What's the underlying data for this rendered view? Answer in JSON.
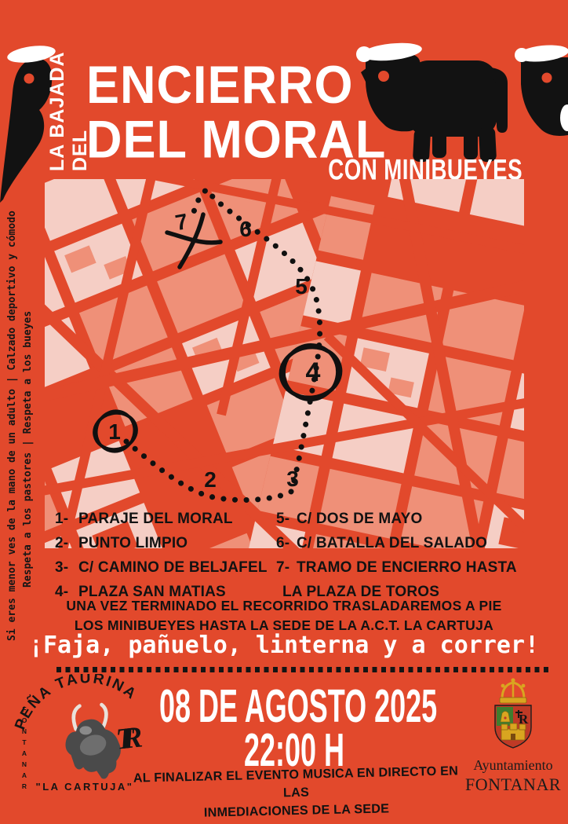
{
  "poster": {
    "header": {
      "kicker": "LA BAJADA DEL",
      "title_line1": "ENCIERRO",
      "title_line2": "DEL MORAL",
      "subtitle": "CON MINIBUEYES"
    },
    "side_notes": {
      "line1": "Si eres menor ves de la mano de un adulto | Calzado deportivo y cómodo",
      "line2": "Respeta a los pastores | Respeta a los bueyes"
    },
    "map": {
      "points": [
        "1",
        "2",
        "3",
        "4",
        "5",
        "6",
        "7"
      ]
    },
    "legend": {
      "left": [
        {
          "num": "1-",
          "label": "PARAJE DEL MORAL"
        },
        {
          "num": "2-",
          "label": "PUNTO LIMPIO"
        },
        {
          "num": "3-",
          "label": "C/ CAMINO DE BELJAFEL"
        },
        {
          "num": "4-",
          "label": "PLAZA SAN MATIAS"
        }
      ],
      "right": [
        {
          "num": "5-",
          "label": "C/ DOS DE MAYO"
        },
        {
          "num": "6-",
          "label": "C/ BATALLA DEL SALADO"
        },
        {
          "num": "7-",
          "label": "TRAMO DE ENCIERRO HASTA"
        },
        {
          "num": "",
          "label": "LA PLAZA DE TOROS"
        }
      ]
    },
    "notes": {
      "line1": "UNA VEZ TERMINADO EL RECORRIDO TRASLADAREMOS A PIE",
      "line2": "LOS MINIBUEYES HASTA LA SEDE DE LA A.C.T. LA CARTUJA"
    },
    "slogan": "¡Faja, pañuelo, linterna y a correr!",
    "event": {
      "date": "08 DE AGOSTO 2025",
      "time": "22:00 H",
      "footer_line1": "AL FINALIZAR EL EVENTO MUSICA EN DIRECTO EN LAS",
      "footer_line2": "INMEDIACIONES DE LA SEDE"
    },
    "pena": {
      "arc": "PEÑA TAURINA",
      "vertical": "FONTANAR",
      "monogram_t": "T",
      "monogram_r": "R",
      "caption": "\"LA CARTUJA\""
    },
    "ayuntamiento": {
      "line1": "Ayuntamiento",
      "line2": "FONTANAR"
    },
    "colors": {
      "background": "#E2492C",
      "ink": "#121212",
      "white": "#FFFFFF",
      "map_light": "#F5CEC5",
      "map_mid": "#EF9078",
      "crest_gold": "#D9A520",
      "crest_green": "#3F7D2E",
      "crest_red": "#BF3A26"
    }
  }
}
